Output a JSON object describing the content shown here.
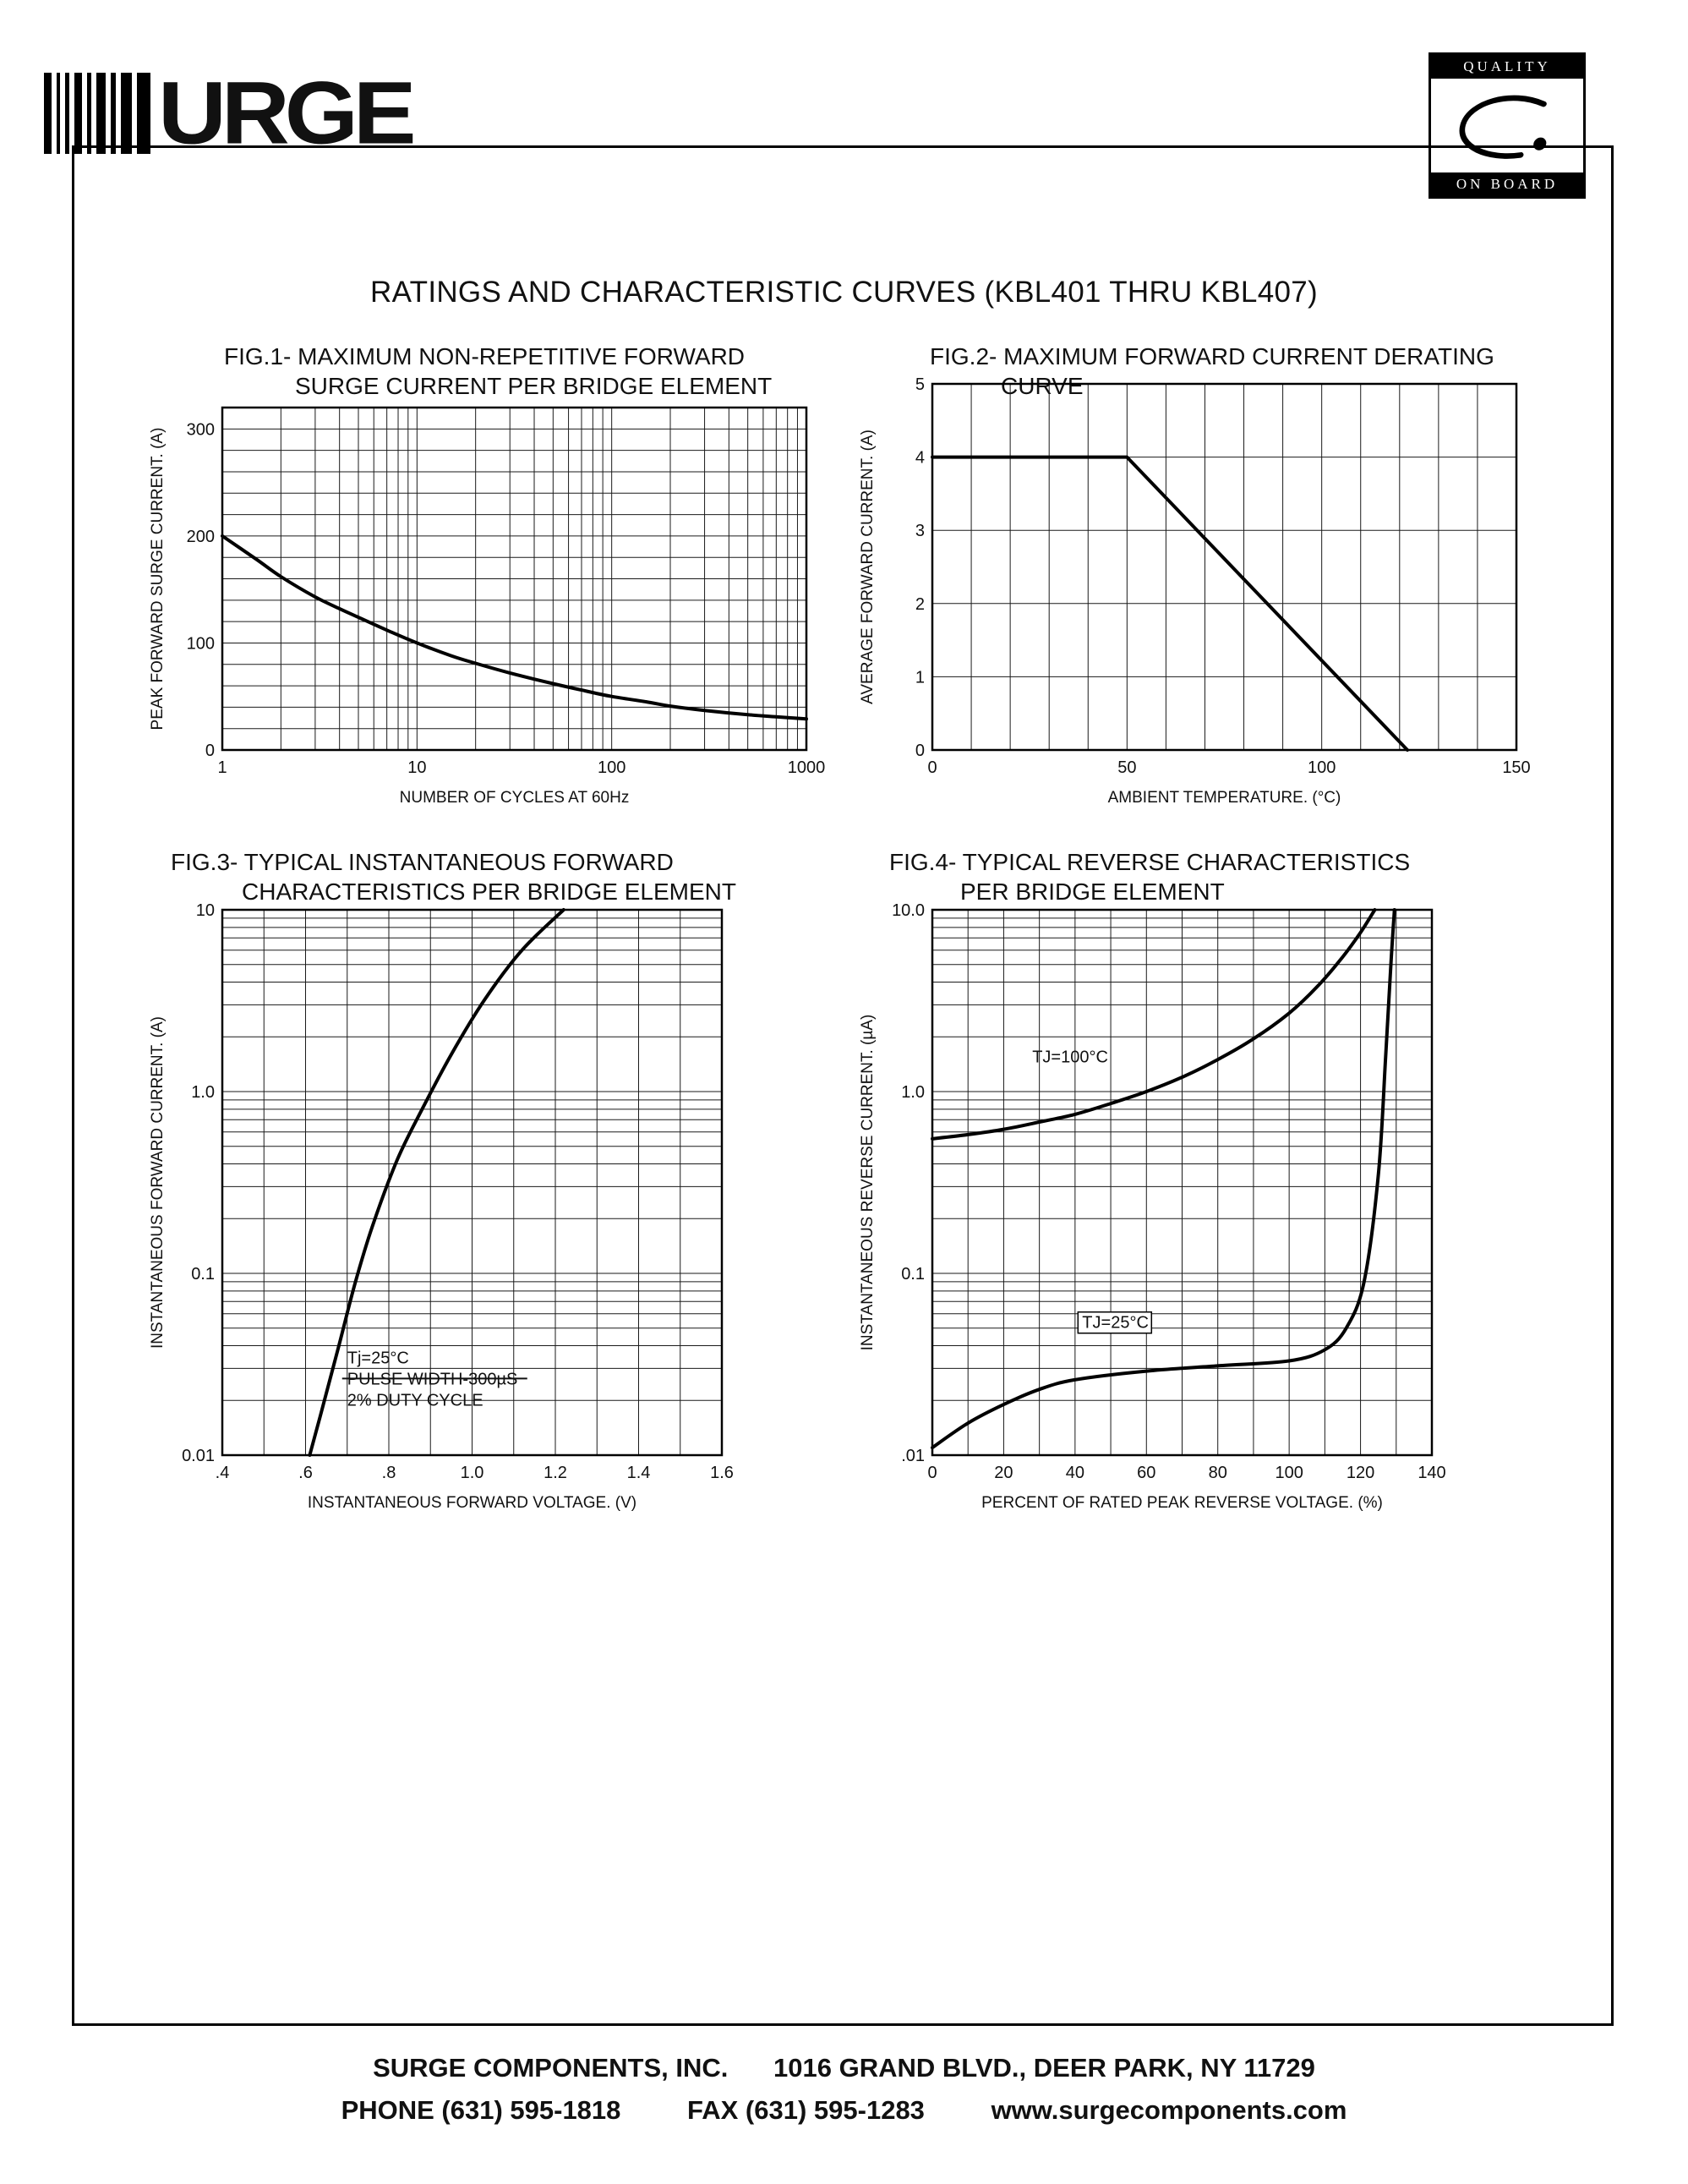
{
  "page": {
    "title": "RATINGS AND CHARACTERISTIC CURVES (KBL401 THRU KBL407)"
  },
  "header": {
    "logo_text": "URGE",
    "badge": {
      "top": "QUALITY",
      "bottom": "ON BOARD"
    }
  },
  "footer": {
    "company": "SURGE COMPONENTS, INC.",
    "address": "1016 GRAND BLVD., DEER PARK, NY  11729",
    "phone": "PHONE (631) 595-1818",
    "fax": "FAX  (631) 595-1283",
    "web": "www.surgecomponents.com"
  },
  "chart_data": [
    {
      "id": "fig1",
      "type": "line",
      "title_line1": "FIG.1- MAXIMUM NON-REPETITIVE FORWARD",
      "title_line2": "SURGE CURRENT PER BRIDGE ELEMENT",
      "xlabel": "NUMBER OF CYCLES AT 60Hz",
      "ylabel": "PEAK FORWARD SURGE CURRENT. (A)",
      "xscale": "log",
      "yscale": "linear",
      "xlim": [
        1,
        1000
      ],
      "ylim": [
        0,
        320
      ],
      "yminor_step": 20,
      "xticks": [
        {
          "v": 1,
          "label": "1"
        },
        {
          "v": 10,
          "label": "10"
        },
        {
          "v": 100,
          "label": "100"
        },
        {
          "v": 1000,
          "label": "1000"
        }
      ],
      "yticks": [
        {
          "v": 0,
          "label": "0"
        },
        {
          "v": 100,
          "label": "100"
        },
        {
          "v": 200,
          "label": "200"
        },
        {
          "v": 300,
          "label": "300"
        }
      ],
      "series": [
        {
          "name": "peak forward surge current",
          "points": [
            [
              1,
              200
            ],
            [
              1.5,
              178
            ],
            [
              2,
              162
            ],
            [
              3,
              143
            ],
            [
              4,
              132
            ],
            [
              5,
              124
            ],
            [
              7,
              112
            ],
            [
              10,
              100
            ],
            [
              15,
              88
            ],
            [
              20,
              81
            ],
            [
              30,
              72
            ],
            [
              50,
              62
            ],
            [
              70,
              56
            ],
            [
              100,
              50
            ],
            [
              150,
              45
            ],
            [
              200,
              41
            ],
            [
              300,
              37
            ],
            [
              500,
              33
            ],
            [
              700,
              31
            ],
            [
              1000,
              29
            ]
          ]
        }
      ]
    },
    {
      "id": "fig2",
      "type": "line",
      "title_line1": "FIG.2- MAXIMUM FORWARD CURRENT DERATING",
      "title_line2": "CURVE",
      "xlabel": "AMBIENT TEMPERATURE. (°C)",
      "ylabel": "AVERAGE FORWARD CURRENT. (A)",
      "xscale": "linear",
      "yscale": "linear",
      "xlim": [
        0,
        150
      ],
      "ylim": [
        0,
        5
      ],
      "xminor_step": 10,
      "yminor_step": 1,
      "xticks": [
        {
          "v": 0,
          "label": "0"
        },
        {
          "v": 50,
          "label": "50"
        },
        {
          "v": 100,
          "label": "100"
        },
        {
          "v": 150,
          "label": "150"
        }
      ],
      "yticks": [
        {
          "v": 0,
          "label": "0"
        },
        {
          "v": 1,
          "label": "1"
        },
        {
          "v": 2,
          "label": "2"
        },
        {
          "v": 3,
          "label": "3"
        },
        {
          "v": 4,
          "label": "4"
        },
        {
          "v": 5,
          "label": "5"
        }
      ],
      "series": [
        {
          "name": "average forward current derating",
          "smooth": false,
          "points": [
            [
              0,
              4
            ],
            [
              50,
              4
            ],
            [
              122,
              0
            ]
          ]
        }
      ]
    },
    {
      "id": "fig3",
      "type": "line",
      "title_line1": "FIG.3- TYPICAL INSTANTANEOUS FORWARD",
      "title_line2": "CHARACTERISTICS PER BRIDGE ELEMENT",
      "xlabel": "INSTANTANEOUS FORWARD VOLTAGE. (V)",
      "ylabel": "INSTANTANEOUS FORWARD CURRENT. (A)",
      "xscale": "linear",
      "yscale": "log",
      "xlim": [
        0.4,
        1.6
      ],
      "ylim": [
        0.01,
        10
      ],
      "xminor_step": 0.1,
      "xticks": [
        {
          "v": 0.4,
          "label": ".4"
        },
        {
          "v": 0.6,
          "label": ".6"
        },
        {
          "v": 0.8,
          "label": ".8"
        },
        {
          "v": 1.0,
          "label": "1.0"
        },
        {
          "v": 1.2,
          "label": "1.2"
        },
        {
          "v": 1.4,
          "label": "1.4"
        },
        {
          "v": 1.6,
          "label": "1.6"
        }
      ],
      "yticks": [
        {
          "v": 10,
          "label": "10"
        },
        {
          "v": 1,
          "label": "1.0"
        },
        {
          "v": 0.1,
          "label": "0.1"
        },
        {
          "v": 0.01,
          "label": "0.01"
        }
      ],
      "series": [
        {
          "name": "instantaneous forward characteristic",
          "points": [
            [
              0.61,
              0.01
            ],
            [
              0.64,
              0.018
            ],
            [
              0.68,
              0.04
            ],
            [
              0.72,
              0.09
            ],
            [
              0.76,
              0.18
            ],
            [
              0.82,
              0.42
            ],
            [
              0.88,
              0.8
            ],
            [
              0.95,
              1.6
            ],
            [
              1.03,
              3.2
            ],
            [
              1.12,
              6
            ],
            [
              1.22,
              10
            ]
          ]
        }
      ],
      "annotations": [
        {
          "x": 0.7,
          "y": 0.032,
          "lines": [
            "Tj=25°C",
            "PULSE WIDTH-300µS",
            "2% DUTY CYCLE"
          ],
          "strike_line": 1
        }
      ]
    },
    {
      "id": "fig4",
      "type": "line",
      "title_line1": "FIG.4- TYPICAL REVERSE CHARACTERISTICS",
      "title_line2": "PER BRIDGE ELEMENT",
      "xlabel": "PERCENT OF RATED PEAK REVERSE VOLTAGE. (%)",
      "ylabel": "INSTANTANEOUS REVERSE CURRENT. (µA)",
      "xscale": "linear",
      "yscale": "log",
      "xlim": [
        0,
        140
      ],
      "ylim": [
        0.01,
        10
      ],
      "xminor_step": 10,
      "xticks": [
        {
          "v": 0,
          "label": "0"
        },
        {
          "v": 20,
          "label": "20"
        },
        {
          "v": 40,
          "label": "40"
        },
        {
          "v": 60,
          "label": "60"
        },
        {
          "v": 80,
          "label": "80"
        },
        {
          "v": 100,
          "label": "100"
        },
        {
          "v": 120,
          "label": "120"
        },
        {
          "v": 140,
          "label": "140"
        }
      ],
      "yticks": [
        {
          "v": 10,
          "label": "10.0"
        },
        {
          "v": 1,
          "label": "1.0"
        },
        {
          "v": 0.1,
          "label": "0.1"
        },
        {
          "v": 0.01,
          "label": ".01"
        }
      ],
      "series": [
        {
          "name": "TJ=100C",
          "points": [
            [
              0,
              0.55
            ],
            [
              10,
              0.58
            ],
            [
              20,
              0.62
            ],
            [
              30,
              0.68
            ],
            [
              40,
              0.75
            ],
            [
              50,
              0.86
            ],
            [
              60,
              1.0
            ],
            [
              70,
              1.2
            ],
            [
              80,
              1.5
            ],
            [
              90,
              1.95
            ],
            [
              100,
              2.7
            ],
            [
              108,
              3.8
            ],
            [
              115,
              5.5
            ],
            [
              120,
              7.5
            ],
            [
              124,
              10
            ]
          ]
        },
        {
          "name": "TJ=25C",
          "points": [
            [
              0,
              0.011
            ],
            [
              10,
              0.015
            ],
            [
              20,
              0.019
            ],
            [
              30,
              0.023
            ],
            [
              40,
              0.026
            ],
            [
              60,
              0.029
            ],
            [
              80,
              0.031
            ],
            [
              100,
              0.033
            ],
            [
              110,
              0.038
            ],
            [
              116,
              0.05
            ],
            [
              121,
              0.09
            ],
            [
              125,
              0.35
            ],
            [
              127,
              1.5
            ],
            [
              128.5,
              5
            ],
            [
              129.5,
              10
            ]
          ]
        }
      ],
      "annotations": [
        {
          "x": 28,
          "y": 1.45,
          "lines": [
            "TJ=100°C"
          ]
        },
        {
          "x": 42,
          "y": 0.05,
          "lines": [
            "TJ=25°C"
          ],
          "bg": true
        }
      ]
    }
  ]
}
